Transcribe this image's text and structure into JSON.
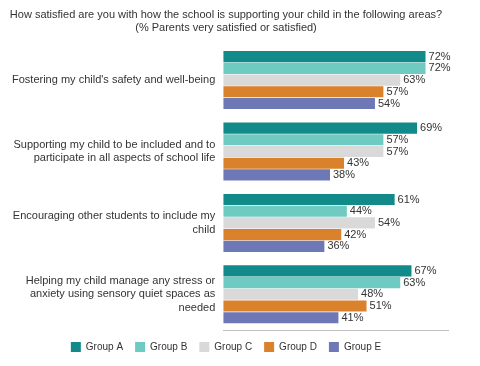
{
  "chart_data": {
    "type": "bar",
    "orientation": "horizontal",
    "title": "How satisfied are you with how the school is supporting your child in the following areas? (% Parents very satisfied or satisfied)",
    "categories": [
      "Fostering my child's safety and well-being",
      "Supporting my child to be included and to participate in all aspects of school life",
      "Encouraging other students to include my child",
      "Helping my child manage any stress or anxiety using sensory quiet spaces as needed"
    ],
    "series": [
      {
        "name": "Group A",
        "color": "#138a8a",
        "values": [
          72,
          69,
          61,
          67
        ],
        "value_labels": [
          "72%",
          "69%",
          "61%",
          "67%"
        ]
      },
      {
        "name": "Group B",
        "color": "#6fcbc2",
        "values": [
          72,
          57,
          44,
          63
        ],
        "value_labels": [
          "72%",
          "57%",
          "44%",
          "63%"
        ]
      },
      {
        "name": "Group C",
        "color": "#d9d9d9",
        "values": [
          63,
          57,
          54,
          48
        ],
        "value_labels": [
          "63%",
          "57%",
          "54%",
          "48%"
        ]
      },
      {
        "name": "Group D",
        "color": "#d9822b",
        "values": [
          57,
          43,
          42,
          51
        ],
        "value_labels": [
          "57%",
          "43%",
          "42%",
          "51%"
        ]
      },
      {
        "name": "Group E",
        "color": "#6f78b6",
        "values": [
          54,
          38,
          36,
          41
        ],
        "value_labels": [
          "54%",
          "38%",
          "36%",
          "41%"
        ]
      }
    ],
    "xlim": [
      0,
      80
    ],
    "grid": false,
    "legend": "bottom",
    "data_labels": true,
    "tick_labels": "y"
  }
}
